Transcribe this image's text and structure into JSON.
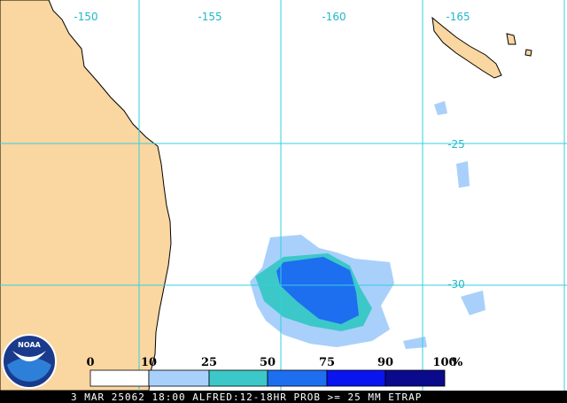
{
  "map": {
    "longitude_labels": [
      "-150",
      "-155",
      "-160",
      "-165"
    ],
    "latitude_labels": [
      "-25",
      "-30"
    ],
    "logo": "NOAA",
    "legend": {
      "labels": [
        "0",
        "10",
        "25",
        "50",
        "75",
        "90",
        "100"
      ],
      "unit": "%"
    },
    "footer": "3 MAR 25062 18:00 ALFRED:12-18HR PROB >= 25 MM ETRAP"
  }
}
